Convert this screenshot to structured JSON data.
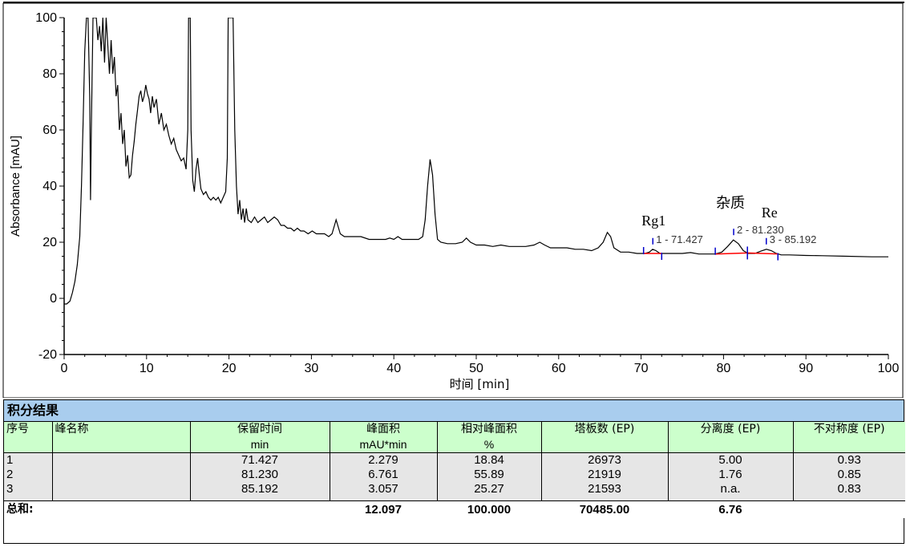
{
  "chart_data": {
    "type": "line",
    "xlabel": "时间 [min]",
    "ylabel": "Absorbance [mAU]",
    "xlim": [
      0,
      100
    ],
    "ylim": [
      -20,
      100
    ],
    "xticks": [
      0,
      10,
      20,
      30,
      40,
      50,
      60,
      70,
      80,
      90,
      100
    ],
    "yticks": [
      -20,
      0,
      20,
      40,
      60,
      80,
      100
    ],
    "series": [
      {
        "values": [
          [
            0,
            -2
          ],
          [
            0.3,
            -2
          ],
          [
            0.7,
            -1
          ],
          [
            1,
            2
          ],
          [
            1.3,
            6
          ],
          [
            1.6,
            12
          ],
          [
            1.9,
            22
          ],
          [
            2.1,
            40
          ],
          [
            2.3,
            62
          ],
          [
            2.5,
            88
          ],
          [
            2.7,
            100
          ],
          [
            2.9,
            100
          ],
          [
            3.1,
            72
          ],
          [
            3.2,
            35
          ],
          [
            3.3,
            60
          ],
          [
            3.5,
            100
          ],
          [
            3.7,
            100
          ],
          [
            3.9,
            100
          ],
          [
            4.1,
            92
          ],
          [
            4.3,
            97
          ],
          [
            4.5,
            88
          ],
          [
            4.7,
            100
          ],
          [
            4.9,
            84
          ],
          [
            5.1,
            100
          ],
          [
            5.3,
            90
          ],
          [
            5.5,
            80
          ],
          [
            5.7,
            92
          ],
          [
            5.9,
            80
          ],
          [
            6.1,
            86
          ],
          [
            6.3,
            72
          ],
          [
            6.5,
            76
          ],
          [
            6.7,
            60
          ],
          [
            6.9,
            66
          ],
          [
            7.1,
            55
          ],
          [
            7.3,
            60
          ],
          [
            7.5,
            47
          ],
          [
            7.7,
            51
          ],
          [
            7.9,
            43
          ],
          [
            8.1,
            44
          ],
          [
            8.3,
            51
          ],
          [
            8.5,
            56
          ],
          [
            8.7,
            62
          ],
          [
            8.9,
            67
          ],
          [
            9.1,
            72
          ],
          [
            9.3,
            74
          ],
          [
            9.5,
            70
          ],
          [
            9.7,
            72
          ],
          [
            9.9,
            76
          ],
          [
            10.1,
            73
          ],
          [
            10.3,
            71
          ],
          [
            10.5,
            66
          ],
          [
            10.7,
            72
          ],
          [
            10.9,
            68
          ],
          [
            11.2,
            71
          ],
          [
            11.5,
            62
          ],
          [
            11.8,
            66
          ],
          [
            12.1,
            60
          ],
          [
            12.4,
            62
          ],
          [
            12.7,
            58
          ],
          [
            13.0,
            55
          ],
          [
            13.3,
            57
          ],
          [
            13.6,
            53
          ],
          [
            13.9,
            51
          ],
          [
            14.2,
            49
          ],
          [
            14.5,
            50
          ],
          [
            14.8,
            46
          ],
          [
            15.0,
            60
          ],
          [
            15.1,
            100
          ],
          [
            15.3,
            100
          ],
          [
            15.4,
            60
          ],
          [
            15.6,
            42
          ],
          [
            15.8,
            38
          ],
          [
            16.0,
            46
          ],
          [
            16.2,
            50
          ],
          [
            16.4,
            44
          ],
          [
            16.6,
            39
          ],
          [
            16.9,
            37
          ],
          [
            17.2,
            38
          ],
          [
            17.5,
            36
          ],
          [
            17.8,
            35
          ],
          [
            18.1,
            36
          ],
          [
            18.4,
            35
          ],
          [
            18.7,
            36
          ],
          [
            19.0,
            34
          ],
          [
            19.3,
            36
          ],
          [
            19.6,
            38
          ],
          [
            19.8,
            50
          ],
          [
            19.9,
            100
          ],
          [
            20.1,
            100
          ],
          [
            20.3,
            100
          ],
          [
            20.5,
            100
          ],
          [
            20.7,
            60
          ],
          [
            20.9,
            40
          ],
          [
            21.1,
            30
          ],
          [
            21.3,
            35
          ],
          [
            21.5,
            28
          ],
          [
            21.7,
            32
          ],
          [
            21.9,
            27
          ],
          [
            22.1,
            32
          ],
          [
            22.3,
            28
          ],
          [
            22.7,
            27
          ],
          [
            23.1,
            29
          ],
          [
            23.5,
            27
          ],
          [
            23.9,
            28
          ],
          [
            24.3,
            29
          ],
          [
            24.7,
            27
          ],
          [
            25.1,
            28
          ],
          [
            25.5,
            29
          ],
          [
            25.9,
            28
          ],
          [
            26.3,
            26
          ],
          [
            26.7,
            26
          ],
          [
            27.1,
            25
          ],
          [
            27.5,
            25
          ],
          [
            27.9,
            24
          ],
          [
            28.3,
            25
          ],
          [
            28.7,
            24
          ],
          [
            29.1,
            24
          ],
          [
            29.6,
            23
          ],
          [
            30.1,
            24
          ],
          [
            30.6,
            23
          ],
          [
            31.1,
            23
          ],
          [
            31.6,
            23
          ],
          [
            32.1,
            22
          ],
          [
            32.5,
            23
          ],
          [
            32.8,
            26
          ],
          [
            33.0,
            28
          ],
          [
            33.2,
            26
          ],
          [
            33.5,
            23
          ],
          [
            34.0,
            22
          ],
          [
            35.0,
            22
          ],
          [
            36.0,
            22
          ],
          [
            37.0,
            21
          ],
          [
            38.0,
            21
          ],
          [
            39.0,
            21
          ],
          [
            39.5,
            21.5
          ],
          [
            40.0,
            21
          ],
          [
            40.5,
            22
          ],
          [
            41.0,
            21
          ],
          [
            42.0,
            21
          ],
          [
            43.0,
            21
          ],
          [
            43.5,
            22
          ],
          [
            43.8,
            28
          ],
          [
            44.1,
            40
          ],
          [
            44.4,
            49.5
          ],
          [
            44.7,
            44
          ],
          [
            45.0,
            30
          ],
          [
            45.3,
            21
          ],
          [
            45.7,
            20
          ],
          [
            46.5,
            19.5
          ],
          [
            47.5,
            19.5
          ],
          [
            48.3,
            20
          ],
          [
            48.8,
            21.5
          ],
          [
            49.3,
            20
          ],
          [
            50.0,
            19
          ],
          [
            51.0,
            19
          ],
          [
            52.0,
            18.5
          ],
          [
            53.0,
            19
          ],
          [
            54.0,
            18.5
          ],
          [
            55.0,
            18.5
          ],
          [
            56.0,
            18.5
          ],
          [
            57.0,
            19
          ],
          [
            57.7,
            20
          ],
          [
            58.3,
            19
          ],
          [
            59.0,
            18
          ],
          [
            60.0,
            18
          ],
          [
            61.0,
            18
          ],
          [
            62.0,
            17.5
          ],
          [
            63.0,
            17.5
          ],
          [
            64.0,
            17
          ],
          [
            64.8,
            18
          ],
          [
            65.4,
            20
          ],
          [
            65.9,
            23.5
          ],
          [
            66.3,
            22
          ],
          [
            66.7,
            18
          ],
          [
            67.5,
            16.5
          ],
          [
            68.5,
            16.5
          ],
          [
            69.5,
            16
          ],
          [
            70.5,
            16
          ],
          [
            71.0,
            16.5
          ],
          [
            71.4,
            17.5
          ],
          [
            71.8,
            17
          ],
          [
            72.3,
            16
          ],
          [
            73.0,
            16
          ],
          [
            74.0,
            16
          ],
          [
            75.0,
            16
          ],
          [
            76.0,
            16.3
          ],
          [
            77.0,
            15.8
          ],
          [
            78.0,
            15.8
          ],
          [
            79.0,
            15.8
          ],
          [
            79.8,
            16.5
          ],
          [
            80.5,
            18.5
          ],
          [
            81.2,
            20.8
          ],
          [
            81.8,
            19.5
          ],
          [
            82.4,
            17
          ],
          [
            83.0,
            16
          ],
          [
            83.8,
            16
          ],
          [
            84.5,
            16.8
          ],
          [
            85.2,
            17.5
          ],
          [
            85.8,
            17
          ],
          [
            86.4,
            16
          ],
          [
            87.0,
            15.5
          ],
          [
            88.0,
            15.5
          ],
          [
            90.0,
            15.3
          ],
          [
            92.0,
            15.2
          ],
          [
            95.0,
            15
          ],
          [
            98.0,
            14.8
          ],
          [
            100,
            14.8
          ]
        ]
      }
    ],
    "peaks": [
      {
        "label": "1 - 71.427",
        "rt": 71.427,
        "y": 17.5,
        "start": 70.3,
        "end": 72.5,
        "name": "Rg1"
      },
      {
        "label": "2 - 81.230",
        "rt": 81.23,
        "y": 20.8,
        "start": 79.0,
        "end": 82.9,
        "name": "杂质"
      },
      {
        "label": "3 - 85.192",
        "rt": 85.192,
        "y": 17.5,
        "start": 82.9,
        "end": 86.6,
        "name": "Re"
      }
    ],
    "colors": {
      "trace": "#000000",
      "baseline": "#ff0000",
      "marker": "#0000cc",
      "label": "#333333"
    }
  },
  "results": {
    "title": "积分结果",
    "headers": [
      "序号",
      "峰名称",
      "保留时间",
      "峰面积",
      "相对峰面积",
      "塔板数 (EP)",
      "分离度 (EP)",
      "不对称度 (EP)"
    ],
    "units": [
      "",
      "",
      "min",
      "mAU*min",
      "%",
      "",
      "",
      ""
    ],
    "rows": [
      [
        "1",
        "",
        "71.427",
        "2.279",
        "18.84",
        "26973",
        "5.00",
        "0.93"
      ],
      [
        "2",
        "",
        "81.230",
        "6.761",
        "55.89",
        "21919",
        "1.76",
        "0.85"
      ],
      [
        "3",
        "",
        "85.192",
        "3.057",
        "25.27",
        "21593",
        "n.a.",
        "0.83"
      ]
    ],
    "total": {
      "label": "总和:",
      "area": "12.097",
      "rel_area": "100.000",
      "plates": "70485.00",
      "resolution": "6.76"
    },
    "colors": {
      "title_bg": "#a9cdee",
      "header_bg": "#ccffcc",
      "row_bg": "#e6e6e6"
    }
  }
}
